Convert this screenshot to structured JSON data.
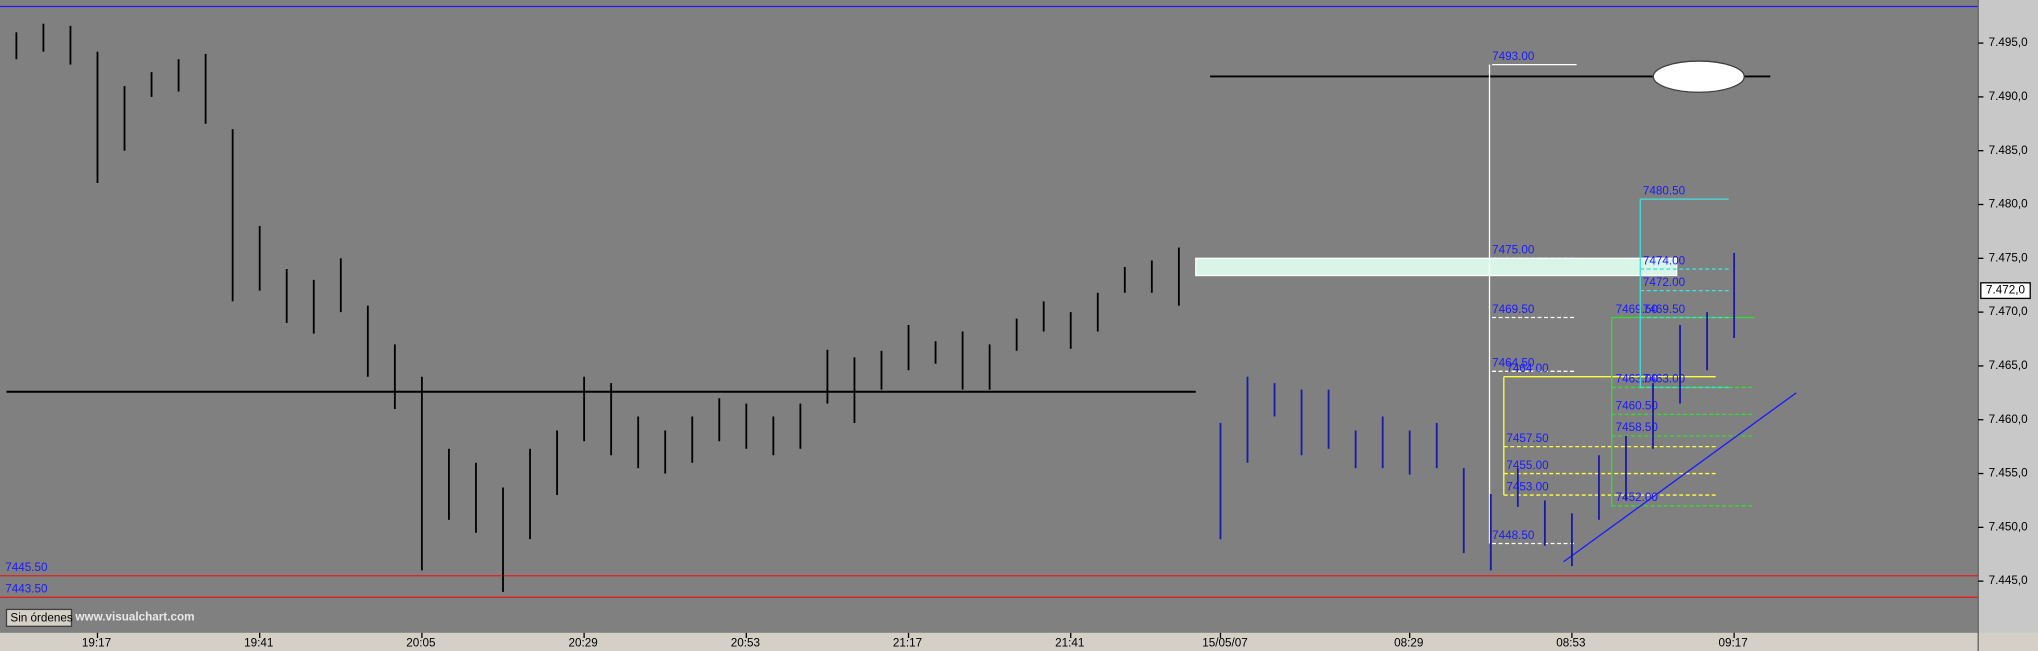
{
  "chart_data": {
    "type": "ohlc",
    "categories": [
      null,
      null,
      null,
      "19:17",
      null,
      null,
      null,
      null,
      null,
      "19:41",
      null,
      null,
      null,
      null,
      null,
      "20:05",
      null,
      null,
      null,
      null,
      null,
      "20:29",
      null,
      null,
      null,
      null,
      null,
      "20:53",
      null,
      null,
      null,
      null,
      null,
      "21:17",
      null,
      null,
      null,
      null,
      null,
      "21:41",
      null,
      null,
      null,
      null,
      "15/05/07",
      null,
      null,
      null,
      null,
      null,
      null,
      "08:29",
      null,
      null,
      null,
      null,
      null,
      "08:53",
      null,
      null,
      null,
      null,
      null,
      "09:17"
    ],
    "series": [
      {
        "color": "#000000",
        "high": [
          7496,
          7496.8,
          7496.6,
          7494.2,
          7491,
          7492.3,
          7493.5,
          7494,
          7487,
          7478,
          7474,
          7473,
          7475,
          7470.6,
          7467,
          7464,
          7457.3,
          7456,
          7453.7,
          7457.3,
          7459,
          7464,
          7463.4,
          7460.3,
          7459,
          7460.3,
          7462,
          7461.5,
          7460.3,
          7461.5,
          7466.5,
          7465.8,
          7466.4,
          7468.8,
          7467.3,
          7468.2,
          7467,
          7469.4,
          7471,
          7470,
          7471.8,
          7474.2,
          7474.8,
          7476,
          null,
          null,
          null,
          null,
          null,
          null,
          null,
          null,
          null,
          null,
          null,
          null,
          null,
          null,
          null,
          null,
          null,
          null,
          null,
          null
        ],
        "low": [
          7493.5,
          7494.2,
          7493,
          7482,
          7485,
          7490,
          7490.5,
          7487.5,
          7471,
          7472,
          7469,
          7468,
          7470,
          7464,
          7461,
          7446,
          7450.7,
          7449.5,
          7444,
          7448.9,
          7453,
          7458,
          7456.7,
          7455.5,
          7455,
          7456,
          7458,
          7457.3,
          7456.7,
          7457.3,
          7461.5,
          7459.7,
          7462.8,
          7464.6,
          7465.2,
          7462.8,
          7462.8,
          7466.4,
          7468.2,
          7466.6,
          7468.2,
          7471.8,
          7471.8,
          7470.6,
          null,
          null,
          null,
          null,
          null,
          null,
          null,
          null,
          null,
          null,
          null,
          null,
          null,
          null,
          null,
          null,
          null,
          null,
          null,
          null
        ]
      },
      {
        "color": "#1a1aa8",
        "high": [
          null,
          null,
          null,
          null,
          null,
          null,
          null,
          null,
          null,
          null,
          null,
          null,
          null,
          null,
          null,
          null,
          null,
          null,
          null,
          null,
          null,
          null,
          null,
          null,
          null,
          null,
          null,
          null,
          null,
          null,
          null,
          null,
          null,
          null,
          null,
          null,
          null,
          null,
          null,
          null,
          null,
          null,
          null,
          null,
          7459.7,
          7464,
          7463.4,
          7462.8,
          7462.8,
          7459,
          7460.3,
          7459,
          7459.7,
          7455.5,
          7453.1,
          7455.5,
          7452.5,
          7451.3,
          7456.7,
          7458.5,
          7463.4,
          7468.8,
          7470,
          7475.5
        ],
        "low": [
          null,
          null,
          null,
          null,
          null,
          null,
          null,
          null,
          null,
          null,
          null,
          null,
          null,
          null,
          null,
          null,
          null,
          null,
          null,
          null,
          null,
          null,
          null,
          null,
          null,
          null,
          null,
          null,
          null,
          null,
          null,
          null,
          null,
          null,
          null,
          null,
          null,
          null,
          null,
          null,
          null,
          null,
          null,
          null,
          7448.9,
          7456,
          7460.3,
          7456.7,
          7457.3,
          7455.5,
          7455.5,
          7454.9,
          7455.5,
          7447.6,
          7446,
          7451.9,
          7448.3,
          7446.4,
          7450.7,
          7452.5,
          7457.3,
          7461.5,
          7464.6,
          7467.6
        ]
      }
    ],
    "ylim": [
      7440.2,
      7498.4
    ],
    "yticks": [
      {
        "value": 7445,
        "label": "7.445,0"
      },
      {
        "value": 7450,
        "label": "7.450,0"
      },
      {
        "value": 7455,
        "label": "7.455,0"
      },
      {
        "value": 7460,
        "label": "7.460,0"
      },
      {
        "value": 7465,
        "label": "7.465,0"
      },
      {
        "value": 7470,
        "label": "7.470,0"
      },
      {
        "value": 7475,
        "label": "7.475,0"
      },
      {
        "value": 7480,
        "label": "7.480,0"
      },
      {
        "value": 7485,
        "label": "7.485,0"
      },
      {
        "value": 7490,
        "label": "7.490,0"
      },
      {
        "value": 7495,
        "label": "7.495,0"
      }
    ],
    "last_price": {
      "value": 7472,
      "label": "7.472,0"
    },
    "levels": [
      {
        "value": 7445.5,
        "label": "7445.50",
        "color": "#e02020"
      },
      {
        "value": 7443.5,
        "label": "7443.50",
        "color": "#e02020"
      }
    ],
    "hlines": [
      {
        "value": 7462.6,
        "color": "#000000"
      },
      {
        "value": 7491.9,
        "color": "#000000"
      }
    ],
    "zone": {
      "top": 7475,
      "bottom": 7473.4,
      "color": "#d8f5e8"
    },
    "trendline": {
      "start": 7446.8,
      "end": 7462.5,
      "color": "#1a1aff"
    },
    "annotations": [
      {
        "color": "#ffffff",
        "levels": [
          {
            "value": 7493,
            "label": "7493.00"
          },
          {
            "value": 7475,
            "label": "7475.00"
          },
          {
            "value": 7469.5,
            "label": "7469.50"
          },
          {
            "value": 7464.5,
            "label": "7464.50"
          },
          {
            "value": 7448.5,
            "label": "7448.50"
          }
        ]
      },
      {
        "color": "#ffff40",
        "levels": [
          {
            "value": 7464,
            "label": "7464.00"
          },
          {
            "value": 7457.5,
            "label": "7457.50"
          },
          {
            "value": 7455,
            "label": "7455.00"
          },
          {
            "value": 7453,
            "label": "7453.00"
          }
        ]
      },
      {
        "color": "#30e030",
        "levels": [
          {
            "value": 7469.5,
            "label": "7469.50"
          },
          {
            "value": 7463,
            "label": "7463.00"
          },
          {
            "value": 7460.5,
            "label": "7460.50"
          },
          {
            "value": 7458.5,
            "label": "7458.50"
          },
          {
            "value": 7452,
            "label": "7452.00"
          }
        ]
      },
      {
        "color": "#40e0e0",
        "levels": [
          {
            "value": 7480.5,
            "label": "7480.50"
          },
          {
            "value": 7474,
            "label": "7474.00"
          },
          {
            "value": 7472,
            "label": "7472.00"
          },
          {
            "value": 7469.5,
            "label": "7469.50"
          },
          {
            "value": 7463,
            "label": "7463.00"
          }
        ]
      }
    ]
  },
  "ui": {
    "status": "Sin órdenes",
    "watermark": "www.visualchart.com"
  }
}
